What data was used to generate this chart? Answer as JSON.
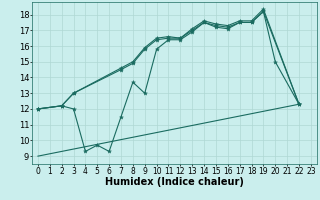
{
  "background_color": "#caeeed",
  "grid_color": "#afd8d4",
  "line_color": "#1a6b60",
  "marker_color": "#1a6b60",
  "xlabel": "Humidex (Indice chaleur)",
  "xlabel_fontsize": 7,
  "tick_fontsize": 6,
  "xlim": [
    -0.5,
    23.5
  ],
  "ylim": [
    8.5,
    18.8
  ],
  "yticks": [
    9,
    10,
    11,
    12,
    13,
    14,
    15,
    16,
    17,
    18
  ],
  "xticks": [
    0,
    1,
    2,
    3,
    4,
    5,
    6,
    7,
    8,
    9,
    10,
    11,
    12,
    13,
    14,
    15,
    16,
    17,
    18,
    19,
    20,
    21,
    22,
    23
  ],
  "series1_x": [
    0,
    2,
    3,
    4,
    5,
    6,
    7,
    8,
    9,
    10,
    11,
    12,
    13,
    14,
    15,
    16,
    17,
    18,
    19,
    20,
    22
  ],
  "series1_y": [
    12,
    12.2,
    12.0,
    9.3,
    9.7,
    9.3,
    11.5,
    13.7,
    13.0,
    15.8,
    16.4,
    16.4,
    16.9,
    17.5,
    17.2,
    17.1,
    17.5,
    17.5,
    18.2,
    15.0,
    12.3
  ],
  "series2_x": [
    0,
    2,
    3,
    7,
    8,
    9,
    10,
    11,
    12,
    13,
    14,
    15,
    16,
    17,
    18,
    19,
    22
  ],
  "series2_y": [
    12,
    12.2,
    13.0,
    14.5,
    14.9,
    15.8,
    16.4,
    16.5,
    16.5,
    17.0,
    17.5,
    17.3,
    17.2,
    17.5,
    17.5,
    18.2,
    12.3
  ],
  "series3_x": [
    0,
    2,
    3,
    7,
    8,
    9,
    10,
    11,
    12,
    13,
    14,
    15,
    16,
    17,
    18,
    19,
    22
  ],
  "series3_y": [
    12,
    12.2,
    13.0,
    14.6,
    15.0,
    15.9,
    16.5,
    16.6,
    16.5,
    17.1,
    17.6,
    17.4,
    17.3,
    17.6,
    17.6,
    18.35,
    12.3
  ],
  "series4_x": [
    0,
    22
  ],
  "series4_y": [
    9.0,
    12.3
  ]
}
